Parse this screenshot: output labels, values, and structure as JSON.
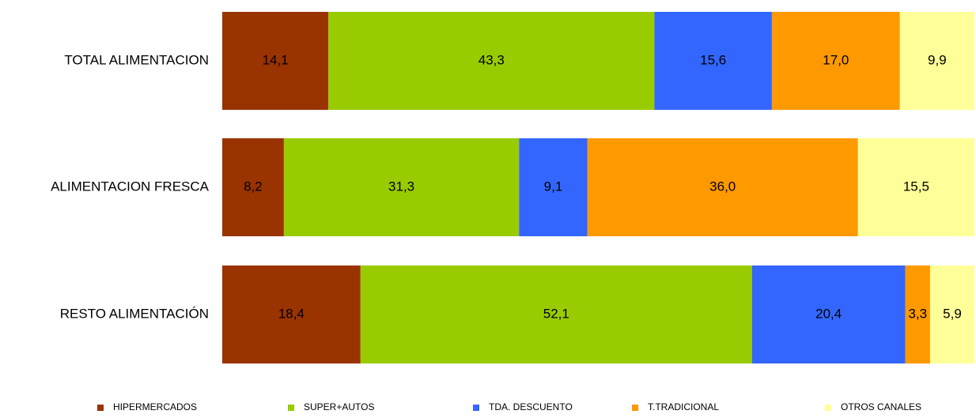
{
  "chart_data": {
    "type": "bar",
    "orientation": "horizontal",
    "stacked": true,
    "percent_stacked": true,
    "categories": [
      "TOTAL ALIMENTACION",
      "ALIMENTACION FRESCA",
      "RESTO ALIMENTACIÓN"
    ],
    "series": [
      {
        "name": "HIPERMERCADOS",
        "color": "#993300",
        "values": [
          14.1,
          8.2,
          18.4
        ],
        "labels": [
          "14,1",
          "8,2",
          "18,4"
        ]
      },
      {
        "name": "SUPER+AUTOS",
        "color": "#99CC00",
        "values": [
          43.3,
          31.3,
          52.1
        ],
        "labels": [
          "43,3",
          "31,3",
          "52,1"
        ]
      },
      {
        "name": "TDA. DESCUENTO",
        "color": "#3366FF",
        "values": [
          15.6,
          9.1,
          20.4
        ],
        "labels": [
          "15,6",
          "9,1",
          "20,4"
        ]
      },
      {
        "name": "T.TRADICIONAL",
        "color": "#FF9900",
        "values": [
          17.0,
          36.0,
          3.3
        ],
        "labels": [
          "17,0",
          "36,0",
          "3,3"
        ]
      },
      {
        "name": "OTROS CANALES",
        "color": "#FFFF99",
        "values": [
          9.9,
          15.5,
          5.9
        ],
        "labels": [
          "9,9",
          "15,5",
          "5,9"
        ]
      }
    ],
    "title": "",
    "xlabel": "",
    "ylabel": "",
    "grid": false,
    "legend_position": "bottom"
  }
}
